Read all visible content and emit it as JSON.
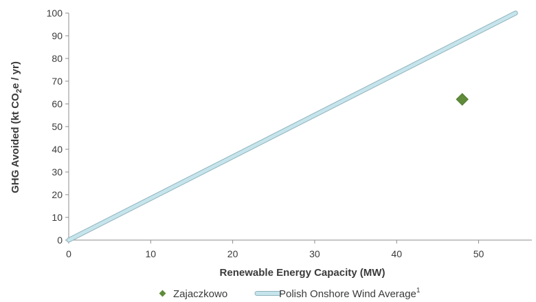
{
  "chart_data": {
    "type": "scatter",
    "xlabel": "Renewable Energy Capacity (MW)",
    "ylabel": {
      "prefix": "GHG Avoided (kt CO",
      "sub": "2",
      "suffix": "e / yr)"
    },
    "xlim": [
      0,
      55
    ],
    "ylim": [
      0,
      100
    ],
    "x_ticks": [
      "0",
      "10",
      "20",
      "30",
      "40",
      "50"
    ],
    "y_ticks": [
      "0",
      "10",
      "20",
      "30",
      "40",
      "50",
      "60",
      "70",
      "80",
      "90",
      "100"
    ],
    "grid": false,
    "legend_position": "bottom",
    "series": [
      {
        "name": "Zajaczkowo",
        "kind": "point",
        "color": "#5f8b3a",
        "points": [
          {
            "x": 48,
            "y": 62
          }
        ]
      },
      {
        "name": "Polish Onshore Wind Average",
        "name_sup": "1",
        "kind": "line",
        "color": "#b9dde6",
        "points": [
          {
            "x": 0,
            "y": 0
          },
          {
            "x": 54.5,
            "y": 100
          }
        ]
      }
    ]
  }
}
